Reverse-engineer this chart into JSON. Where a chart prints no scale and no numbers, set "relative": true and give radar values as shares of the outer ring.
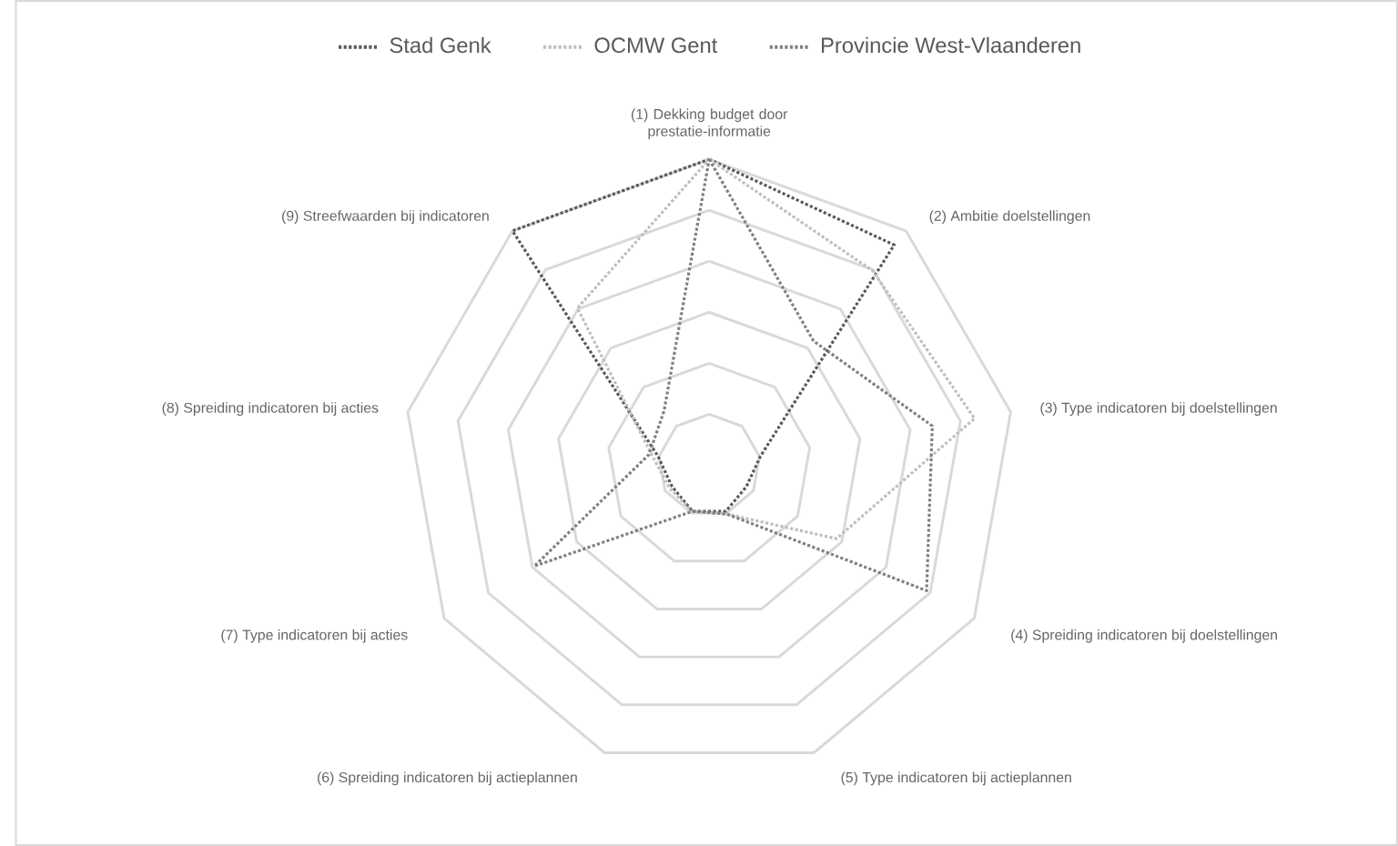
{
  "chart_data": {
    "type": "radar",
    "relative": true,
    "grid": true,
    "legend": "top",
    "line_style": "dotted",
    "categories": [
      "(1) Dekking budget door prestatie-informatie",
      "(2) Ambitie doelstellingen",
      "(3) Type indicatoren bij doelstellingen",
      "(4) Spreiding indicatoren bij doelstellingen",
      "(5) Type indicatoren bij actieplannen",
      "(6) Spreiding indicatoren bij actieplannen",
      "(7) Type indicatoren bij acties",
      "(8) Spreiding indicatoren bij acties",
      "(9) Streefwaarden bij indicatoren"
    ],
    "series": [
      {
        "name": "Stad Genk",
        "color": "#595959",
        "values": [
          1.0,
          0.94,
          0.17,
          0.14,
          0.16,
          0.16,
          0.14,
          0.17,
          1.0
        ]
      },
      {
        "name": "OCMW Gent",
        "color": "#bfbfbf",
        "values": [
          1.0,
          0.83,
          0.88,
          0.48,
          0.17,
          0.16,
          0.15,
          0.19,
          0.67
        ]
      },
      {
        "name": "Provincie West-Vlaanderen",
        "color": "#808080",
        "values": [
          1.0,
          0.53,
          0.74,
          0.82,
          0.17,
          0.16,
          0.66,
          0.2,
          0.23
        ]
      }
    ]
  }
}
